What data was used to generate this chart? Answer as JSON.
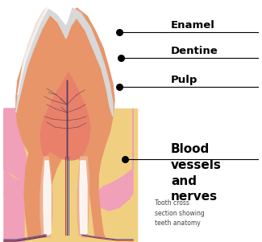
{
  "bg_color": "#ffffff",
  "dentine_color": "#e8956a",
  "enamel_color": "#d8d8d8",
  "enamel_highlight": "#f0f0f0",
  "pulp_color": "#e8806a",
  "pulp_light": "#f0b090",
  "canal_white": "#f5e0d8",
  "canal_inner": "#ffffff",
  "gum_color": "#f0a0b8",
  "bone_color": "#f0d080",
  "nerve_dark": "#5a3a5a",
  "nerve_red": "#c04040",
  "nerve_blue": "#5060b0",
  "label_enamel": "Enamel",
  "label_dentine": "Dentine",
  "label_pulp": "Pulp",
  "label_blood": "Blood\nvessels\nand\nnerves",
  "caption": "Tooth cross\nsection showing\nteeth anatomy",
  "label_fontsize": 9.5,
  "caption_fontsize": 5.5,
  "figsize": [
    3.25,
    3.01
  ],
  "dpi": 100
}
